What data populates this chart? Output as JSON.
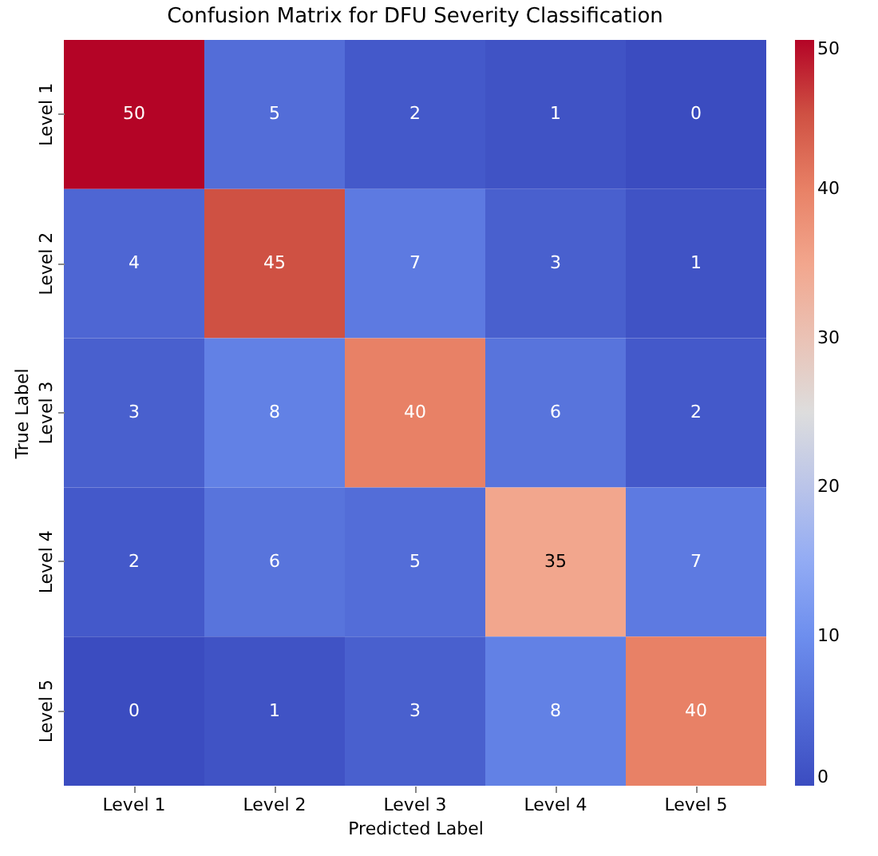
{
  "chart_data": {
    "type": "heatmap",
    "title": "Confusion Matrix for DFU Severity Classification",
    "xlabel": "Predicted Label",
    "ylabel": "True Label",
    "categories": [
      "Level 1",
      "Level 2",
      "Level 3",
      "Level 4",
      "Level 5"
    ],
    "y_categories": [
      "Level 1",
      "Level 2",
      "Level 3",
      "Level 4",
      "Level 5"
    ],
    "cells": [
      [
        50,
        5,
        2,
        1,
        0
      ],
      [
        4,
        45,
        7,
        3,
        1
      ],
      [
        3,
        8,
        40,
        6,
        2
      ],
      [
        2,
        6,
        5,
        35,
        7
      ],
      [
        0,
        1,
        3,
        8,
        40
      ]
    ],
    "data_labels": true,
    "clim": [
      0,
      50
    ],
    "cticks": [
      0,
      10,
      20,
      30,
      40,
      50
    ]
  }
}
